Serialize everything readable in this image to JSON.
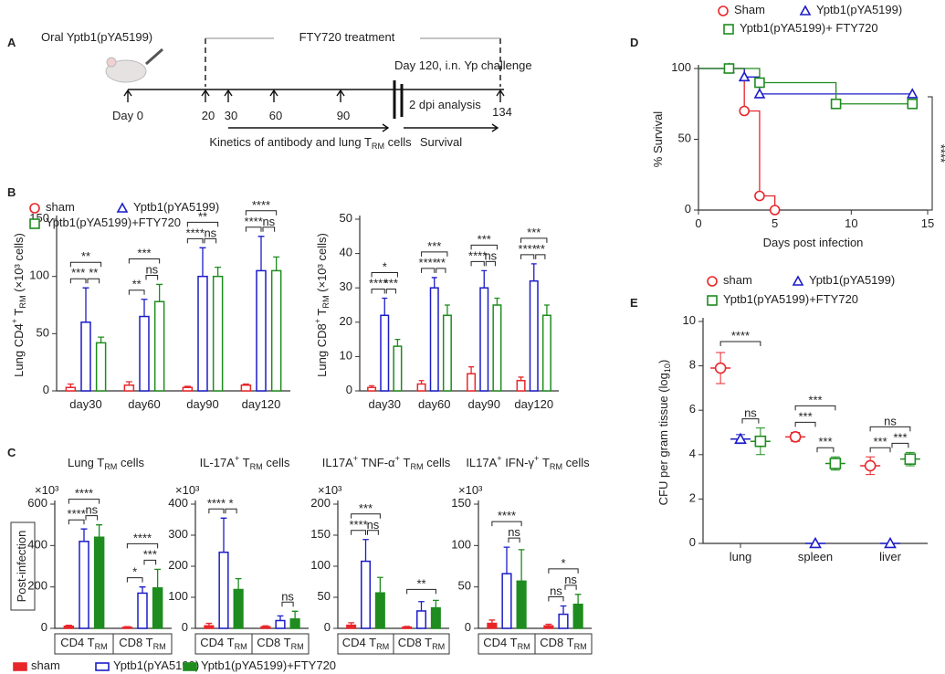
{
  "timeline": {
    "panel": "A",
    "oral": "Oral Yptb1(pYA5199)",
    "treatment": "FTY720 treatment",
    "challenge": "Day 120, i.n. Yp challenge",
    "days": [
      "Day 0",
      "20",
      "30",
      "60",
      "90",
      "134"
    ],
    "analysis": "2 dpi analysis",
    "kinetics": "Kinetics of antibody and lung TRM cells",
    "survival": "Survival"
  },
  "chart_data": [
    {
      "type": "bar",
      "panel": "B",
      "ylabel": "Lung CD4+ TRM (×10³ cells)",
      "categories": [
        "day30",
        "day60",
        "day90",
        "day120"
      ],
      "ylim": [
        0,
        150
      ],
      "yticks": [
        0,
        50,
        100,
        150
      ],
      "series": [
        {
          "name": "sham",
          "color": "#e8262a",
          "marker": "circle",
          "filled": false,
          "values": [
            3,
            5,
            3,
            5
          ],
          "errors": [
            3,
            3,
            1,
            1
          ]
        },
        {
          "name": "Yptb1(pYA5199)",
          "color": "#1c1cc8",
          "marker": "triangle",
          "filled": false,
          "values": [
            60,
            65,
            100,
            105
          ],
          "errors": [
            30,
            15,
            25,
            30
          ]
        },
        {
          "name": "Yptb1(pYA5199)+FTY720",
          "color": "#1e8c1e",
          "marker": "square",
          "filled": false,
          "values": [
            42,
            78,
            100,
            105
          ],
          "errors": [
            5,
            15,
            8,
            12
          ]
        }
      ],
      "significance": [
        [
          "***",
          "**",
          "**"
        ],
        [
          "**",
          "***",
          "ns"
        ],
        [
          "****",
          "**",
          "ns"
        ],
        [
          "****",
          "****",
          "ns"
        ]
      ]
    },
    {
      "type": "bar",
      "ylabel": "Lung CD8+ TRM (×10³ cells)",
      "categories": [
        "day30",
        "day60",
        "day90",
        "day120"
      ],
      "ylim": [
        0,
        50
      ],
      "yticks": [
        0,
        10,
        20,
        30,
        40,
        50
      ],
      "series": [
        {
          "color": "#e8262a",
          "filled": false,
          "values": [
            1,
            2,
            5,
            3
          ],
          "errors": [
            0.5,
            1,
            2,
            1
          ]
        },
        {
          "color": "#1c1cc8",
          "filled": false,
          "values": [
            22,
            30,
            30,
            32
          ],
          "errors": [
            5,
            3,
            5,
            5
          ]
        },
        {
          "color": "#1e8c1e",
          "filled": false,
          "values": [
            13,
            22,
            25,
            22
          ],
          "errors": [
            2,
            3,
            2,
            3
          ]
        }
      ],
      "significance": [
        [
          "****",
          "*",
          "***"
        ],
        [
          "****",
          "***",
          "**"
        ],
        [
          "****",
          "***",
          "ns"
        ],
        [
          "****",
          "***",
          "**"
        ]
      ]
    },
    {
      "type": "bar",
      "panel": "C",
      "row_label": "Post-infection",
      "title": "Lung TRM cells",
      "ylabel": "×10³",
      "categories": [
        "CD4 TRM",
        "CD8 TRM"
      ],
      "ylim": [
        0,
        600
      ],
      "yticks": [
        0,
        200,
        400,
        600
      ],
      "series": [
        {
          "name": "sham",
          "color": "#e8262a",
          "filled": true,
          "values": [
            10,
            5
          ],
          "errors": [
            5,
            3
          ]
        },
        {
          "name": "Yptb1(pYA5199)",
          "color": "#1c1cc8",
          "filled": false,
          "values": [
            420,
            170
          ],
          "errors": [
            60,
            30
          ]
        },
        {
          "name": "Yptb1(pYA5199)+FTY720",
          "color": "#1e8c1e",
          "filled": true,
          "values": [
            440,
            195
          ],
          "errors": [
            60,
            90
          ]
        }
      ],
      "significance": [
        [
          "****",
          "****",
          "ns"
        ],
        [
          "*",
          "****",
          "***"
        ]
      ]
    },
    {
      "type": "bar",
      "title": "IL-17A+ TRM cells",
      "ylabel": "×10³",
      "categories": [
        "CD4 TRM",
        "CD8 TRM"
      ],
      "ylim": [
        0,
        400
      ],
      "yticks": [
        0,
        100,
        200,
        300,
        400
      ],
      "series": [
        {
          "color": "#e8262a",
          "filled": true,
          "values": [
            8,
            5
          ],
          "errors": [
            8,
            3
          ]
        },
        {
          "color": "#1c1cc8",
          "filled": false,
          "values": [
            245,
            25
          ],
          "errors": [
            110,
            15
          ]
        },
        {
          "color": "#1e8c1e",
          "filled": true,
          "values": [
            125,
            30
          ],
          "errors": [
            35,
            25
          ]
        }
      ],
      "significance": [
        [
          "****",
          null,
          "*"
        ],
        [
          null,
          null,
          "ns"
        ]
      ]
    },
    {
      "type": "bar",
      "title": "IL17A+ TNF-α+ TRM cells",
      "ylabel": "×10³",
      "categories": [
        "CD4 TRM",
        "CD8 TRM"
      ],
      "ylim": [
        0,
        200
      ],
      "yticks": [
        0,
        50,
        100,
        150,
        200
      ],
      "series": [
        {
          "color": "#e8262a",
          "filled": true,
          "values": [
            5,
            2
          ],
          "errors": [
            4,
            1
          ]
        },
        {
          "color": "#1c1cc8",
          "filled": false,
          "values": [
            108,
            28
          ],
          "errors": [
            35,
            15
          ]
        },
        {
          "color": "#1e8c1e",
          "filled": true,
          "values": [
            57,
            33
          ],
          "errors": [
            25,
            12
          ]
        }
      ],
      "significance": [
        [
          "****",
          "***",
          "ns"
        ],
        [
          null,
          "**",
          null
        ]
      ]
    },
    {
      "type": "bar",
      "title": "IL17A+ IFN-γ+ TRM cells",
      "ylabel": "×10³",
      "categories": [
        "CD4 TRM",
        "CD8 TRM"
      ],
      "ylim": [
        0,
        150
      ],
      "yticks": [
        0,
        50,
        100,
        150
      ],
      "series": [
        {
          "color": "#e8262a",
          "filled": true,
          "values": [
            6,
            3
          ],
          "errors": [
            4,
            2
          ]
        },
        {
          "color": "#1c1cc8",
          "filled": false,
          "values": [
            66,
            17
          ],
          "errors": [
            32,
            10
          ]
        },
        {
          "color": "#1e8c1e",
          "filled": true,
          "values": [
            57,
            29
          ],
          "errors": [
            38,
            12
          ]
        }
      ],
      "significance": [
        [
          null,
          "****",
          "ns"
        ],
        [
          "ns",
          "*",
          "ns"
        ]
      ]
    },
    {
      "type": "line",
      "panel": "D",
      "drawstyle": "steps",
      "ylabel": "% Survival",
      "xlabel": "Days post infection",
      "annotation": "****",
      "xlim": [
        0,
        15
      ],
      "xticks": [
        0,
        5,
        10,
        15
      ],
      "ylim": [
        0,
        100
      ],
      "yticks": [
        0,
        50,
        100
      ],
      "series": [
        {
          "name": "Sham",
          "color": "#e8262a",
          "marker": "circle",
          "x": [
            0,
            3,
            4,
            5
          ],
          "values": [
            100,
            70,
            10,
            0
          ]
        },
        {
          "name": "Yptb1(pYA5199)",
          "color": "#1c1cc8",
          "marker": "triangle",
          "x": [
            0,
            2,
            3,
            4,
            14
          ],
          "values": [
            100,
            100,
            94,
            82,
            82
          ]
        },
        {
          "name": "Yptb1(pYA5199)+ FTY720",
          "color": "#1e8c1e",
          "marker": "square",
          "x": [
            0,
            2,
            4,
            9,
            14
          ],
          "values": [
            100,
            100,
            90,
            75,
            75
          ]
        }
      ]
    },
    {
      "type": "dot",
      "panel": "E",
      "ylabel": "CFU per gram tissue (log10)",
      "categories": [
        "lung",
        "spleen",
        "liver"
      ],
      "ylim": [
        0,
        10
      ],
      "yticks": [
        0,
        2,
        4,
        6,
        8,
        10
      ],
      "series": [
        {
          "name": "sham",
          "color": "#e8262a",
          "marker": "circle",
          "values": [
            7.9,
            4.8,
            3.5
          ],
          "errors": [
            0.7,
            0.2,
            0.4
          ]
        },
        {
          "name": "Yptb1(pYA5199)",
          "color": "#1c1cc8",
          "marker": "triangle",
          "values": [
            4.7,
            0,
            0
          ],
          "errors": [
            0.2,
            0,
            0
          ]
        },
        {
          "name": "Yptb1(pYA5199)+FTY720",
          "color": "#1e8c1e",
          "marker": "square",
          "values": [
            4.6,
            3.6,
            3.8
          ],
          "errors": [
            0.6,
            0.3,
            0.3
          ]
        }
      ],
      "significance": [
        [
          null,
          "****",
          "ns"
        ],
        [
          "***",
          "***",
          "***"
        ],
        [
          "***",
          "ns",
          "***"
        ]
      ]
    }
  ]
}
